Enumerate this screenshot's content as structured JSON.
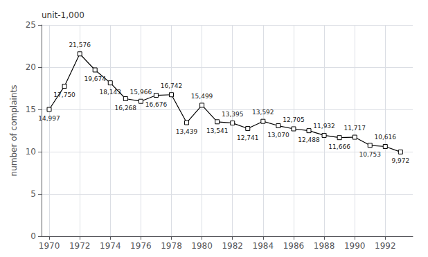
{
  "chart_data": {
    "type": "line",
    "ylabel": "number of complaints",
    "annotations": [
      "unit-1,000"
    ],
    "x": [
      1970,
      1971,
      1972,
      1973,
      1974,
      1975,
      1976,
      1977,
      1978,
      1979,
      1980,
      1981,
      1982,
      1983,
      1984,
      1985,
      1986,
      1987,
      1988,
      1989,
      1990,
      1991,
      1992,
      1993
    ],
    "values": [
      14.997,
      17.75,
      21.576,
      19.674,
      18.143,
      16.268,
      15.966,
      16.676,
      16.742,
      13.439,
      15.499,
      13.541,
      13.395,
      12.741,
      13.592,
      13.07,
      12.705,
      12.488,
      11.932,
      11.666,
      11.717,
      10.753,
      10.616,
      9.972
    ],
    "value_labels": [
      "14,997",
      "17,750",
      "21,576",
      "19,674",
      "18,143",
      "16,268",
      "15,966",
      "16,676",
      "16,742",
      "13,439",
      "15,499",
      "13,541",
      "13,395",
      "12,741",
      "13,592",
      "13,070",
      "12,705",
      "12,488",
      "11,932",
      "11,666",
      "11,717",
      "10,753",
      "10,616",
      "9,972"
    ],
    "data_labels": true,
    "color": "#000000",
    "marker": "square",
    "xlim": [
      1969.5,
      1993.8
    ],
    "xticks": [
      1970,
      1972,
      1974,
      1976,
      1978,
      1980,
      1982,
      1984,
      1986,
      1988,
      1990,
      1992
    ],
    "ylim": [
      0,
      25
    ],
    "yticks": [
      0,
      5,
      10,
      15,
      20,
      25
    ],
    "grid": true
  }
}
